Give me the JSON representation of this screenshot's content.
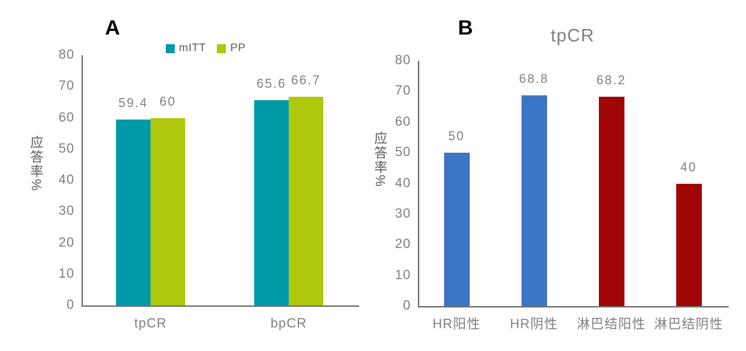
{
  "figure": {
    "background": "#ffffff"
  },
  "colors": {
    "axis_line": "#707070",
    "tick_label": "#7f7f7f",
    "data_label": "#7f7f7f",
    "category_label": "#7f7f7f",
    "axis_title": "#595959",
    "panel_letter": "#000000",
    "chart_title": "#7f7f7f",
    "teal": "#0099A8",
    "yellow_green": "#AFC70D",
    "blue": "#3C74C6",
    "dark_red": "#A00606"
  },
  "chart_data": [
    {
      "type": "bar",
      "panel_label": "A",
      "title": "",
      "ylabel": "应答率%",
      "ylim": [
        0,
        80
      ],
      "yticks": [
        0,
        10,
        20,
        30,
        40,
        50,
        60,
        70,
        80
      ],
      "categories": [
        "tpCR",
        "bpCR"
      ],
      "series": [
        {
          "name": "mITT",
          "color": "#0099A8",
          "values": [
            59.4,
            65.6
          ]
        },
        {
          "name": "PP",
          "color": "#AFC70D",
          "values": [
            60,
            66.7
          ]
        }
      ],
      "data_labels": [
        "59.4",
        "60",
        "65.6",
        "66.7"
      ],
      "legend_position": "top",
      "grid": false
    },
    {
      "type": "bar",
      "panel_label": "B",
      "title": "tpCR",
      "ylabel": "应答率%",
      "ylim": [
        0,
        80
      ],
      "yticks": [
        0,
        10,
        20,
        30,
        40,
        50,
        60,
        70,
        80
      ],
      "categories": [
        "HR阳性",
        "HR阴性",
        "淋巴结阳性",
        "淋巴结阴性"
      ],
      "series": [
        {
          "name": "tpCR",
          "values": [
            50,
            68.8,
            68.2,
            40
          ],
          "bar_colors": [
            "#3C74C6",
            "#3C74C6",
            "#A00606",
            "#A00606"
          ]
        }
      ],
      "data_labels": [
        "50",
        "68.8",
        "68.2",
        "40"
      ],
      "legend_position": "none",
      "grid": false
    }
  ]
}
